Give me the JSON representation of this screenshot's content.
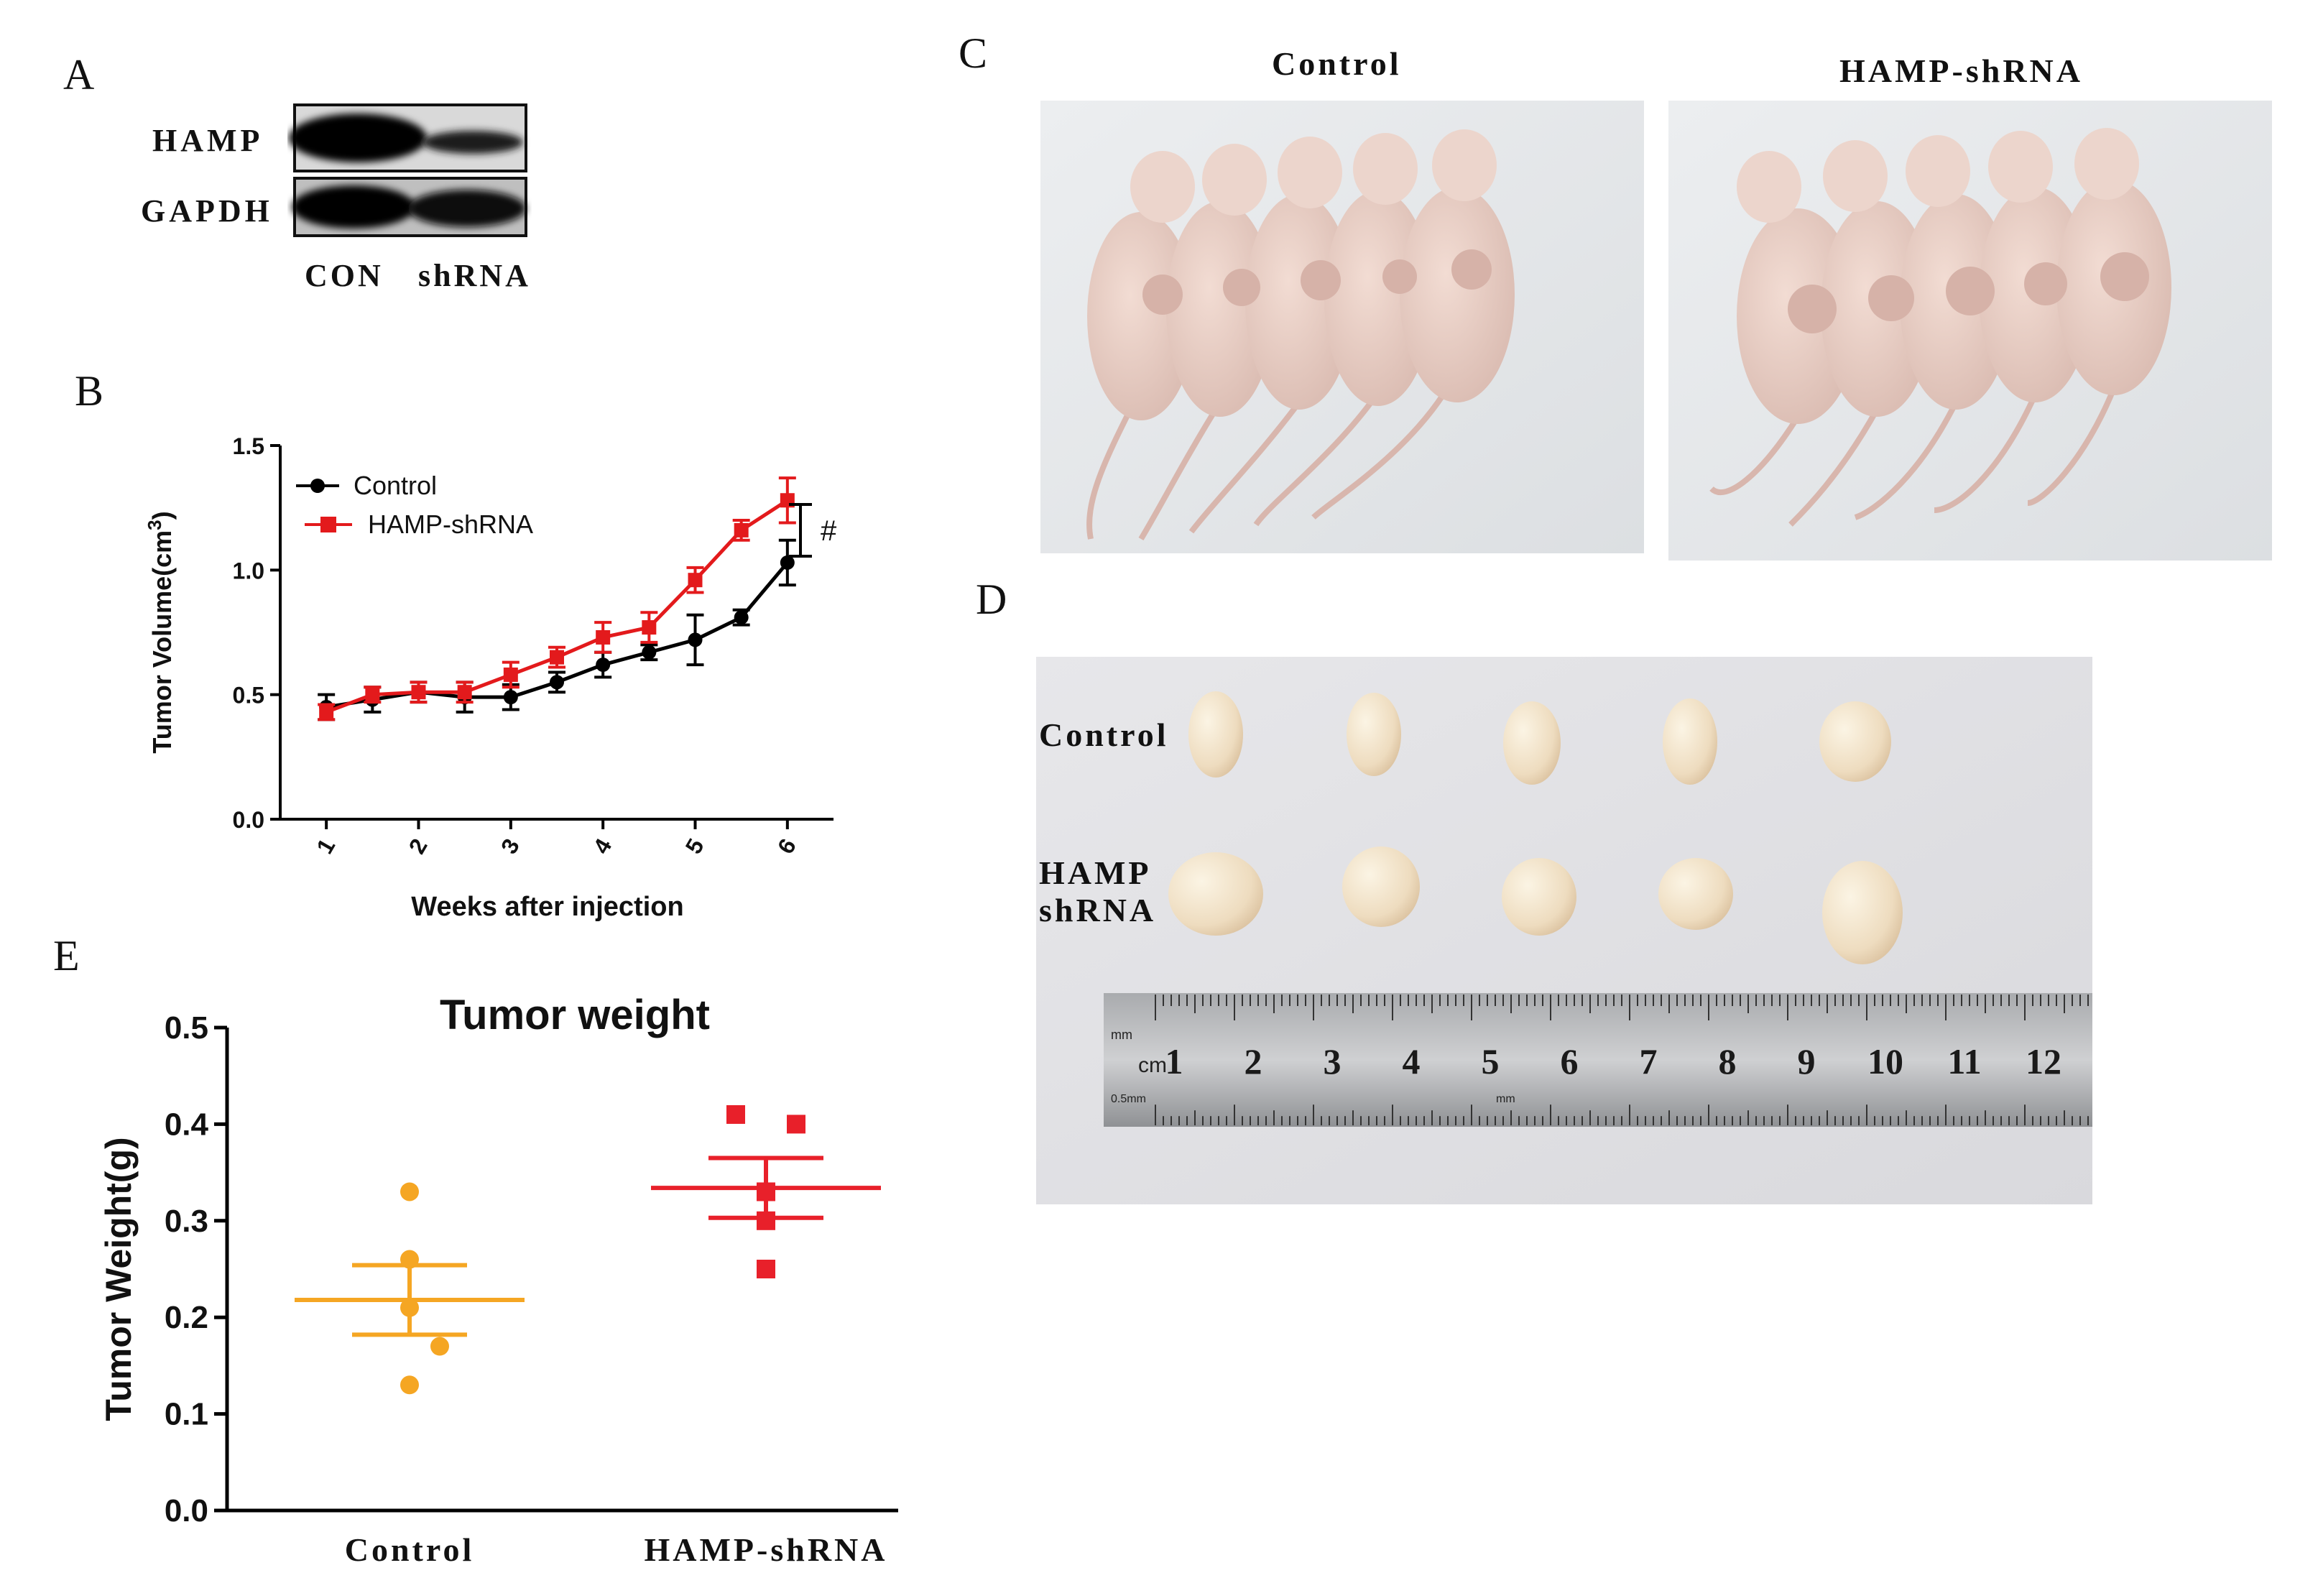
{
  "panels": {
    "A": {
      "letter": "A",
      "rows": [
        "HAMP",
        "GAPDH"
      ],
      "lanes": [
        "CON",
        "shRNA"
      ]
    },
    "B": {
      "letter": "B"
    },
    "C": {
      "letter": "C",
      "photo_titles": [
        "Control",
        "HAMP-shRNA"
      ]
    },
    "D": {
      "letter": "D",
      "row_labels": [
        "Control",
        "HAMP",
        "shRNA"
      ],
      "ruler": {
        "unit_top": "mm",
        "unit_cm": "cm",
        "unit_half": "0.5mm",
        "unit_mm": "mm",
        "numbers": [
          "1",
          "2",
          "3",
          "4",
          "5",
          "6",
          "7",
          "8",
          "9",
          "10",
          "11",
          "12"
        ]
      }
    },
    "E": {
      "letter": "E"
    }
  },
  "colors": {
    "control_line": "#000000",
    "shrna_line": "#e31a1c",
    "control_dot": "#f5a623",
    "shrna_dot": "#e8202a"
  },
  "chart_data": [
    {
      "id": "B",
      "type": "line",
      "title": "",
      "xlabel": "Weeks after injection",
      "ylabel_main": "Tumor Volume(cm",
      "ylabel_sup": "3",
      "ylabel_close": ")",
      "ylim": [
        0,
        1.5
      ],
      "yticks": [
        "0.0",
        "0.5",
        "1.0",
        "1.5"
      ],
      "xlim": [
        0.5,
        6.5
      ],
      "xticks": [
        "1",
        "2",
        "3",
        "4",
        "5",
        "6"
      ],
      "legend": [
        "Control",
        "HAMP-shRNA"
      ],
      "significance": "#",
      "x": [
        1,
        1.5,
        2,
        2.5,
        3,
        3.5,
        4,
        4.5,
        5,
        5.5,
        6
      ],
      "series": [
        {
          "name": "Control",
          "values": [
            0.45,
            0.48,
            0.51,
            0.49,
            0.49,
            0.55,
            0.62,
            0.67,
            0.72,
            0.81,
            1.03
          ],
          "errors": [
            0.05,
            0.05,
            0.04,
            0.06,
            0.05,
            0.04,
            0.05,
            0.03,
            0.1,
            0.03,
            0.09
          ]
        },
        {
          "name": "HAMP-shRNA",
          "values": [
            0.43,
            0.5,
            0.51,
            0.51,
            0.58,
            0.65,
            0.73,
            0.77,
            0.96,
            1.16,
            1.28
          ],
          "errors": [
            0.03,
            0.03,
            0.04,
            0.04,
            0.05,
            0.04,
            0.06,
            0.06,
            0.05,
            0.04,
            0.09
          ]
        }
      ]
    },
    {
      "id": "E",
      "type": "scatter",
      "title": "Tumor weight",
      "xlabel": "",
      "ylabel": "Tumor Weight(g)",
      "ylim": [
        0,
        0.5
      ],
      "yticks": [
        "0.0",
        "0.1",
        "0.2",
        "0.3",
        "0.4",
        "0.5"
      ],
      "categories": [
        "Control",
        "HAMP-shRNA"
      ],
      "series": [
        {
          "name": "Control",
          "points": [
            0.33,
            0.26,
            0.21,
            0.17,
            0.13
          ],
          "jitter": [
            0,
            0,
            0,
            1,
            0
          ],
          "mean": 0.218,
          "sem": 0.036
        },
        {
          "name": "HAMP-shRNA",
          "points": [
            0.41,
            0.4,
            0.33,
            0.3,
            0.25
          ],
          "jitter": [
            -1,
            1,
            0,
            0,
            0
          ],
          "mean": 0.334,
          "sem": 0.031
        }
      ]
    }
  ]
}
